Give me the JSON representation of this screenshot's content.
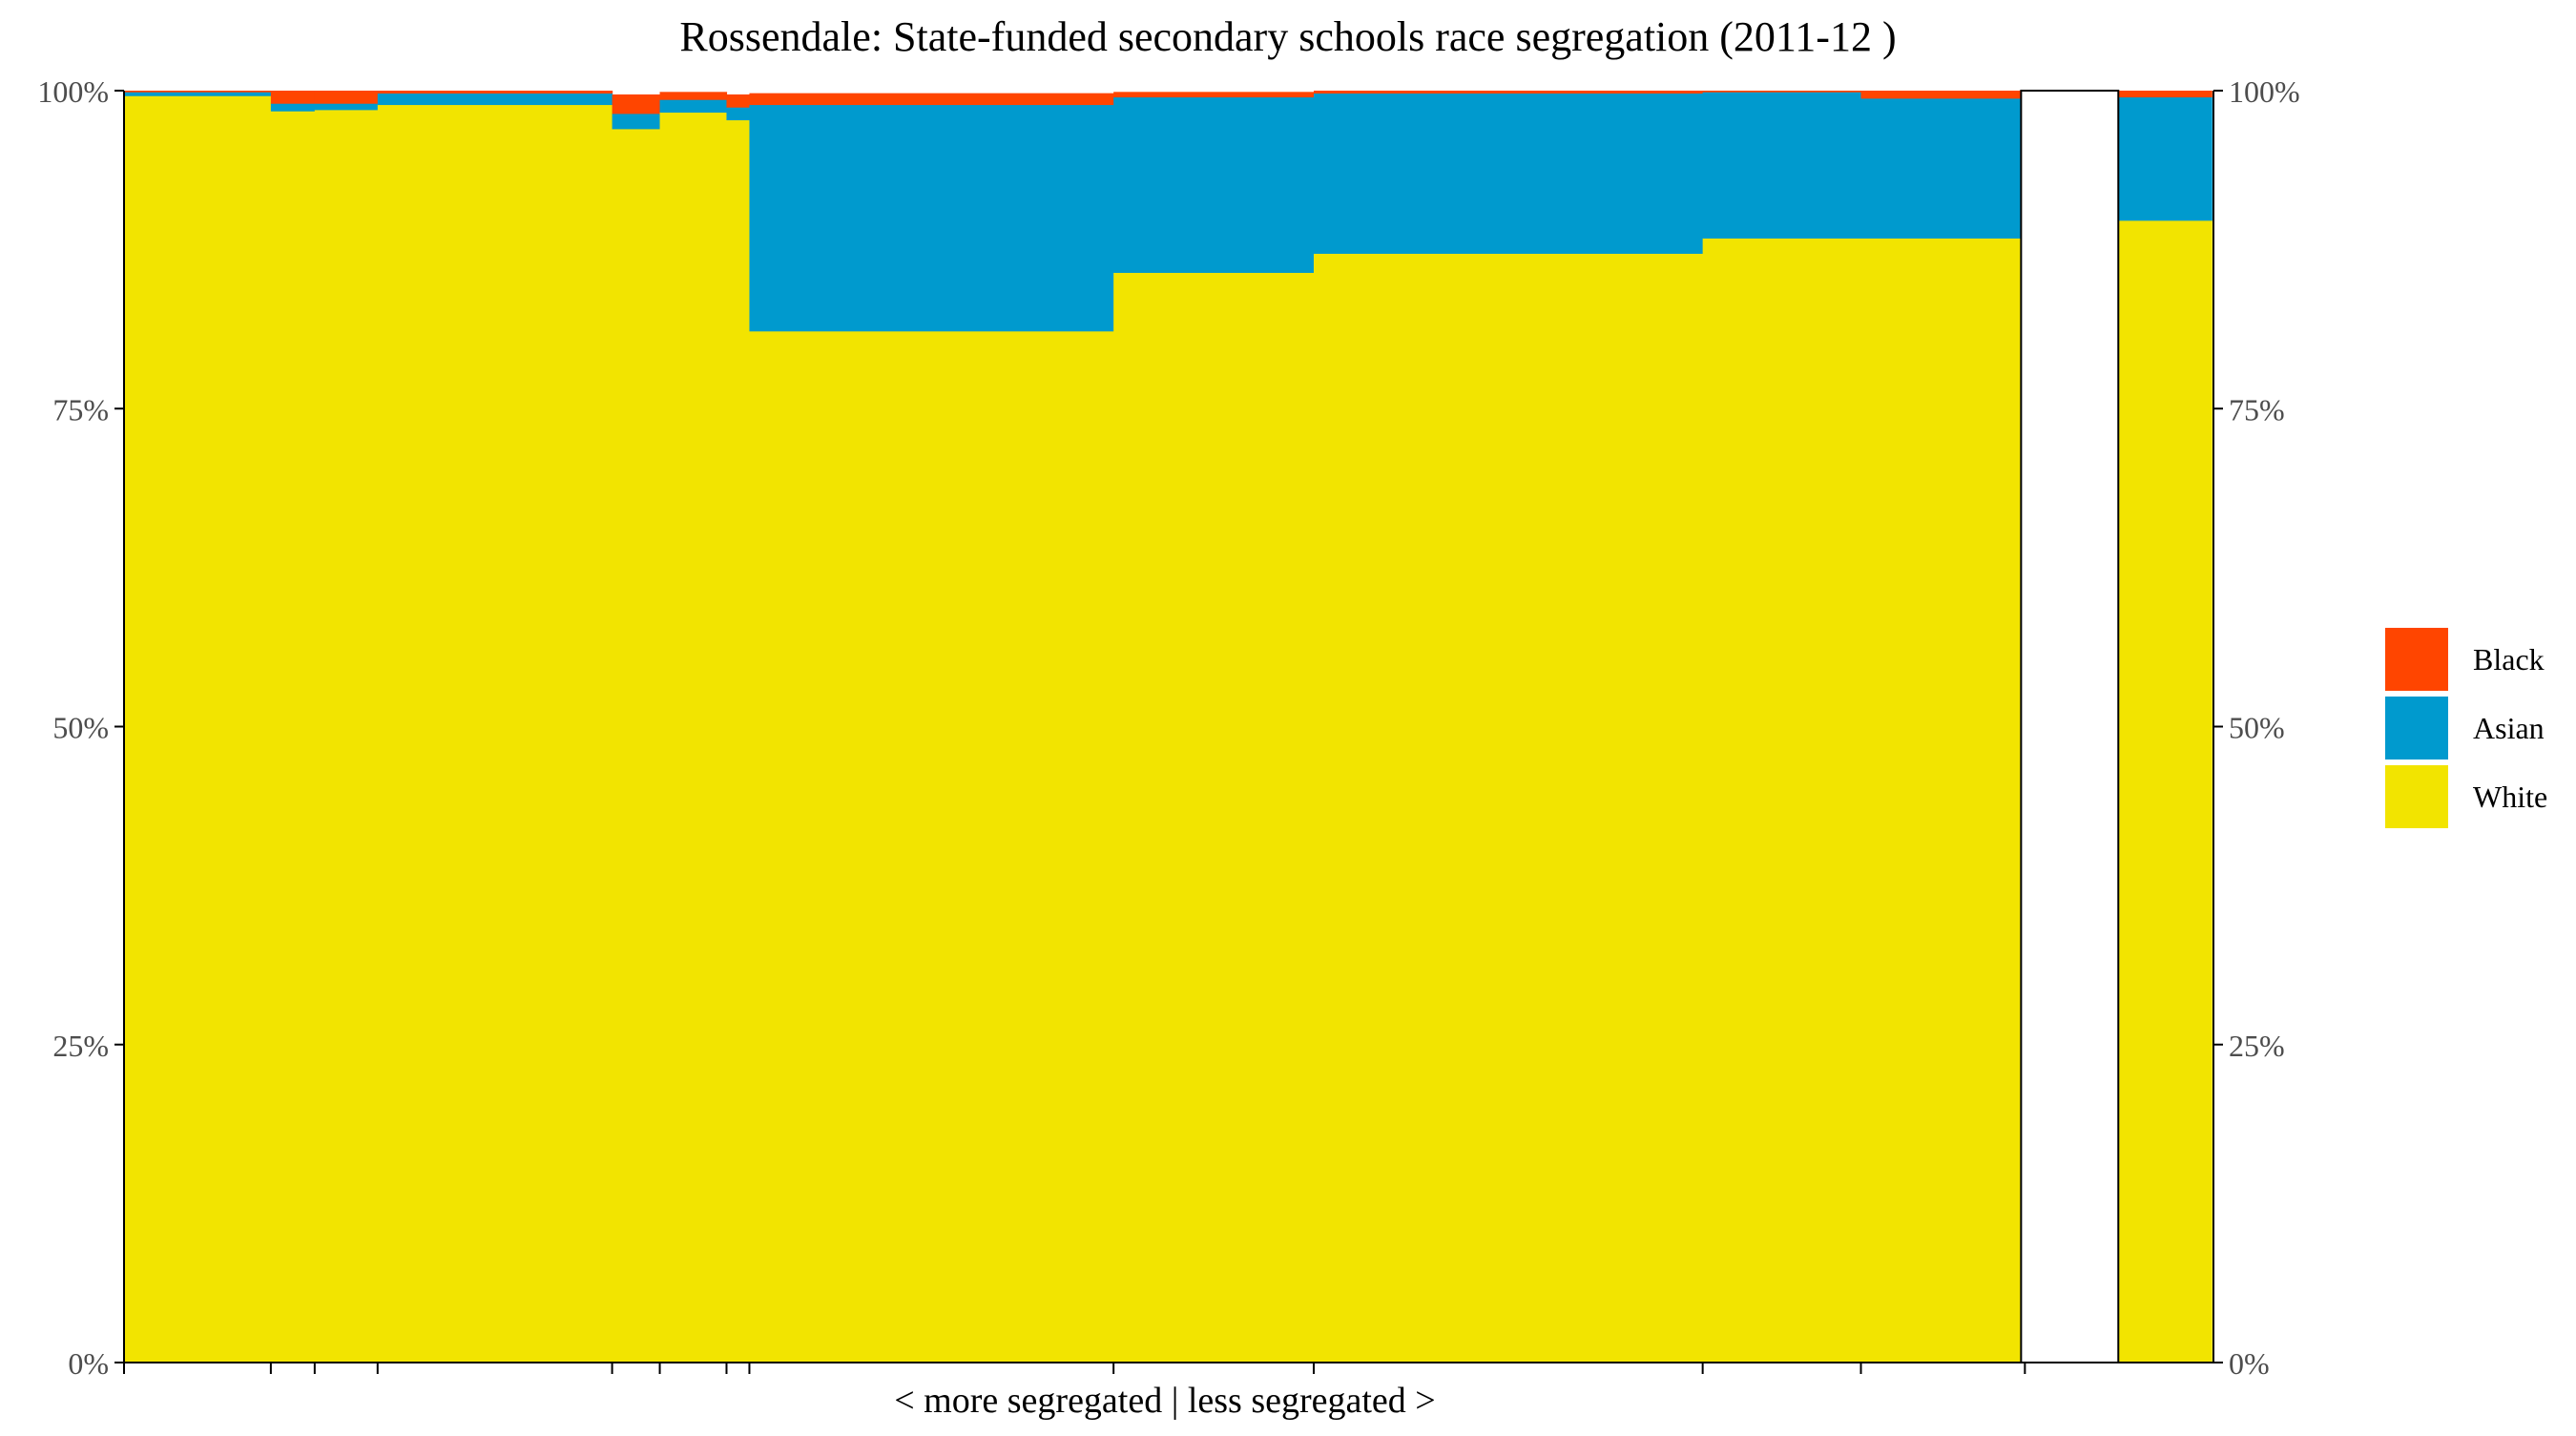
{
  "chart_data": {
    "type": "bar",
    "subtype": "stacked-mosaic",
    "title": "Rossendale: State-funded secondary schools race segregation (2011-12 )",
    "xlabel": "< more segregated | less segregated >",
    "ylabel": "",
    "ylim": [
      0,
      1
    ],
    "y_tick_labels": [
      "0%",
      "25%",
      "50%",
      "75%",
      "100%"
    ],
    "y_tick_values": [
      0,
      0.25,
      0.5,
      0.75,
      1
    ],
    "grid": false,
    "legend_position": "right",
    "stack_order": [
      "White",
      "Asian",
      "Black"
    ],
    "legend_order": [
      "Black",
      "Asian",
      "White"
    ],
    "colors": {
      "White": "#F2E400",
      "Asian": "#009ACE",
      "Black": "#FF4500"
    },
    "x_range": [
      0,
      0.995
    ],
    "schools": [
      {
        "x_start": 0.0,
        "x_end": 0.077,
        "White": 0.996,
        "Asian": 0.003,
        "Black": 0.001
      },
      {
        "x_start": 0.077,
        "x_end": 0.1,
        "White": 0.984,
        "Asian": 0.006,
        "Black": 0.01
      },
      {
        "x_start": 0.1,
        "x_end": 0.133,
        "White": 0.985,
        "Asian": 0.005,
        "Black": 0.01
      },
      {
        "x_start": 0.133,
        "x_end": 0.256,
        "White": 0.989,
        "Asian": 0.009,
        "Black": 0.002
      },
      {
        "x_start": 0.256,
        "x_end": 0.281,
        "White": 0.97,
        "Asian": 0.012,
        "Black": 0.015
      },
      {
        "x_start": 0.281,
        "x_end": 0.316,
        "White": 0.983,
        "Asian": 0.01,
        "Black": 0.006
      },
      {
        "x_start": 0.316,
        "x_end": 0.328,
        "White": 0.977,
        "Asian": 0.01,
        "Black": 0.01
      },
      {
        "x_start": 0.328,
        "x_end": 0.519,
        "White": 0.811,
        "Asian": 0.178,
        "Black": 0.009
      },
      {
        "x_start": 0.519,
        "x_end": 0.624,
        "White": 0.857,
        "Asian": 0.138,
        "Black": 0.004
      },
      {
        "x_start": 0.624,
        "x_end": 0.828,
        "White": 0.872,
        "Asian": 0.126,
        "Black": 0.002
      },
      {
        "x_start": 0.828,
        "x_end": 0.911,
        "White": 0.884,
        "Asian": 0.115,
        "Black": 0.001
      },
      {
        "x_start": 0.911,
        "x_end": 0.997,
        "White": 0.884,
        "Asian": 0.11,
        "Black": 0.006
      },
      {
        "x_start": 1.046,
        "x_end": 1.095,
        "White": 0.898,
        "Asian": 0.097,
        "Black": 0.005
      }
    ]
  }
}
